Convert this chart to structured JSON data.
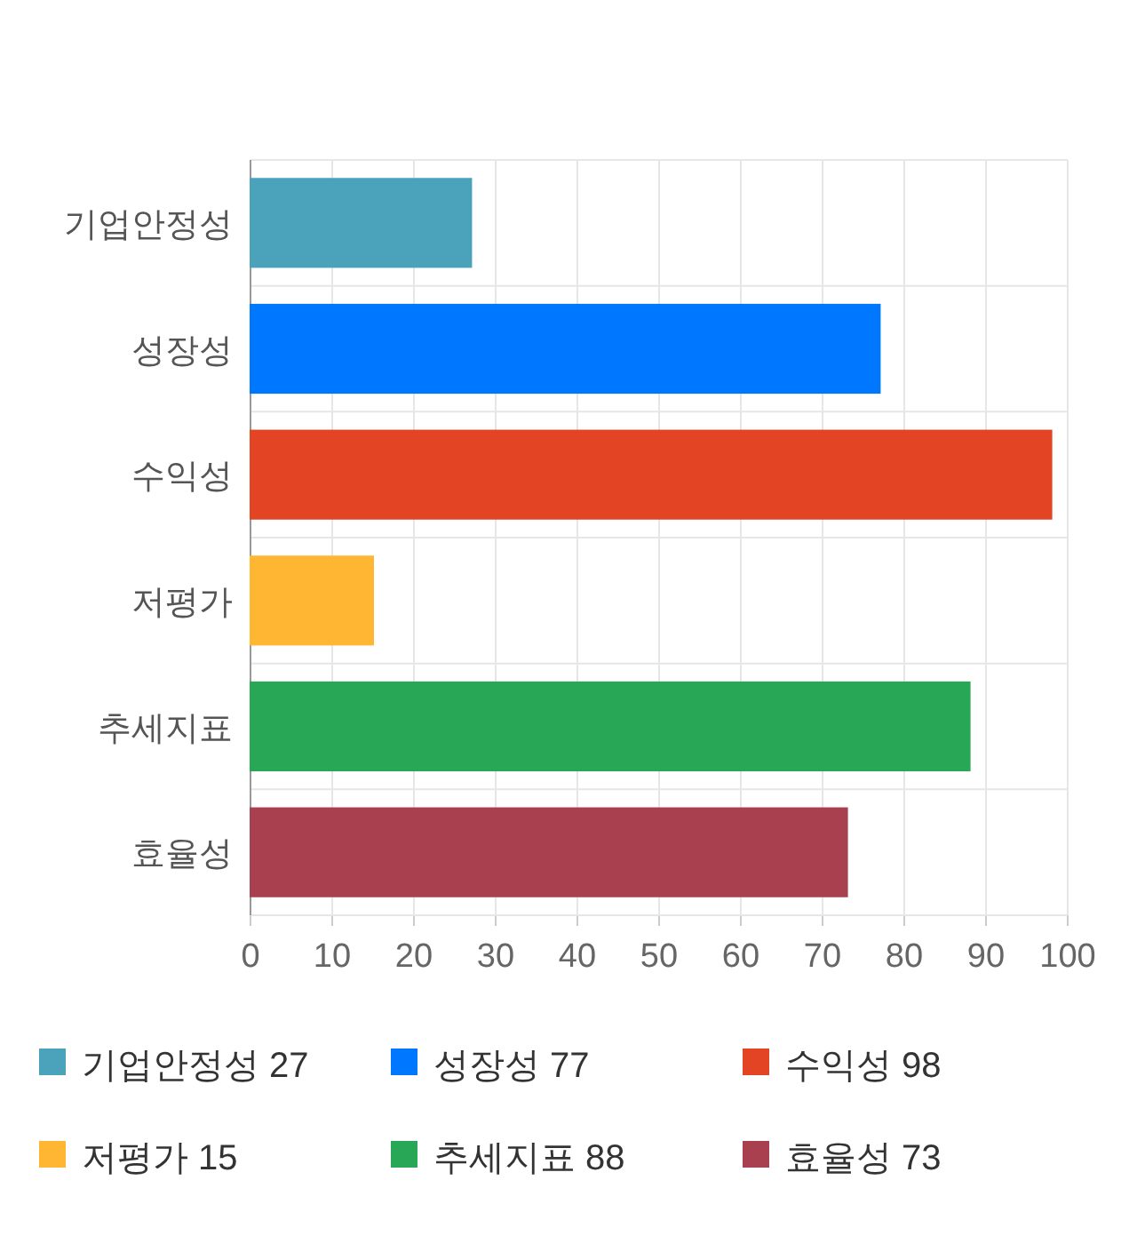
{
  "chart_data": {
    "type": "bar",
    "orientation": "horizontal",
    "categories": [
      "기업안정성",
      "성장성",
      "수익성",
      "저평가",
      "추세지표",
      "효율성"
    ],
    "series": [
      {
        "name": "기업안정성 27",
        "color": "#4aa2bb",
        "values": [
          27,
          null,
          null,
          null,
          null,
          null
        ]
      },
      {
        "name": "성장성 77",
        "color": "#0077ff",
        "values": [
          null,
          77,
          null,
          null,
          null,
          null
        ]
      },
      {
        "name": "수익성 98",
        "color": "#e24424",
        "values": [
          null,
          null,
          98,
          null,
          null,
          null
        ]
      },
      {
        "name": "저평가 15",
        "color": "#ffb733",
        "values": [
          null,
          null,
          null,
          15,
          null,
          null
        ]
      },
      {
        "name": "추세지표 88",
        "color": "#28a756",
        "values": [
          null,
          null,
          null,
          null,
          88,
          null
        ]
      },
      {
        "name": "효율성 73",
        "color": "#a84050",
        "values": [
          null,
          null,
          null,
          null,
          null,
          73
        ]
      }
    ],
    "xlim": [
      0,
      100
    ],
    "xticks": [
      0,
      10,
      20,
      30,
      40,
      50,
      60,
      70,
      80,
      90,
      100
    ],
    "grid": true,
    "legend": "bottom"
  }
}
